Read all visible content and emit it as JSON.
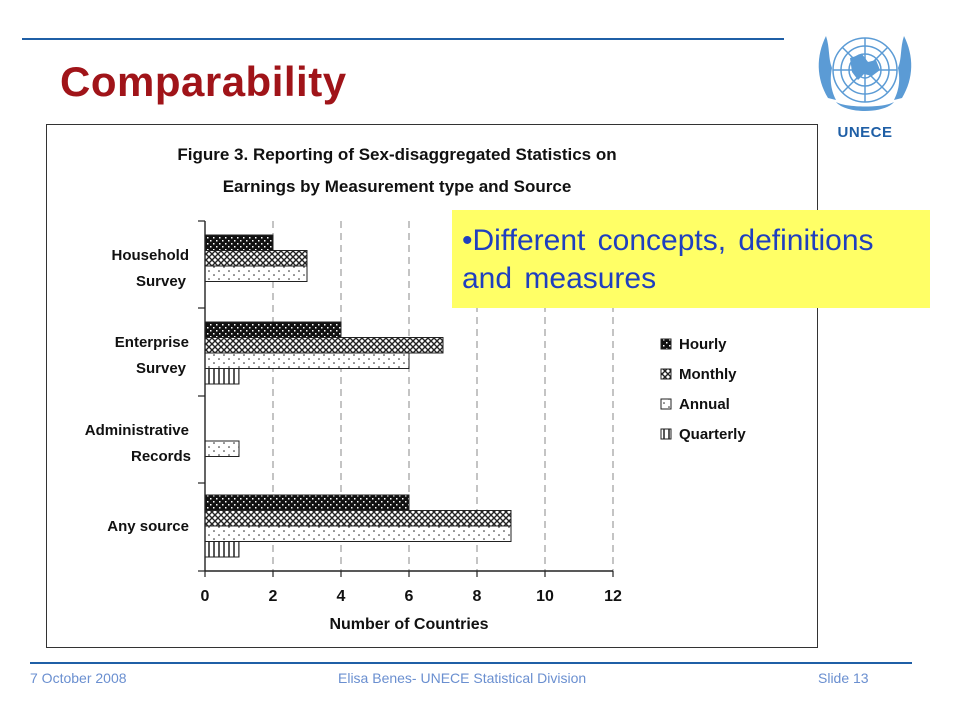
{
  "slide": {
    "title": "Comparability",
    "logo_text": "UNECE",
    "callout": "•Different concepts, definitions and measures",
    "footer": {
      "date": "7 October 2008",
      "author": "Elisa Benes- UNECE Statistical Division",
      "slide_number": "Slide 13"
    }
  },
  "colors": {
    "title": "#a01419",
    "accent": "#1f5fa6",
    "callout_bg": "#ffff66",
    "callout_text": "#1f3fbf",
    "footer_text": "#6a8fd0"
  },
  "chart_data": {
    "type": "bar",
    "orientation": "horizontal",
    "title_line1": "Figure 3. Reporting of Sex-disaggregated Statistics on",
    "title_line2": "Earnings by Measurement type and Source",
    "xlabel": "Number of Countries",
    "xlim": [
      0,
      12
    ],
    "xticks": [
      "0",
      "2",
      "4",
      "6",
      "8",
      "10",
      "12"
    ],
    "grid": "vertical dashed",
    "legend_position": "right",
    "categories": [
      {
        "line1": "Household",
        "line2": "Survey"
      },
      {
        "line1": "Enterprise",
        "line2": "Survey"
      },
      {
        "line1": "Administrative",
        "line2": "Records"
      },
      {
        "line1": "Any source",
        "line2": ""
      }
    ],
    "series": [
      {
        "name": "Hourly",
        "pattern": "dark",
        "values": [
          2,
          4,
          0,
          6
        ]
      },
      {
        "name": "Monthly",
        "pattern": "cross",
        "values": [
          3,
          7,
          0,
          9
        ]
      },
      {
        "name": "Annual",
        "pattern": "dots",
        "values": [
          3,
          6,
          1,
          9
        ]
      },
      {
        "name": "Quarterly",
        "pattern": "vlines",
        "values": [
          0,
          1,
          0,
          1
        ]
      }
    ]
  }
}
